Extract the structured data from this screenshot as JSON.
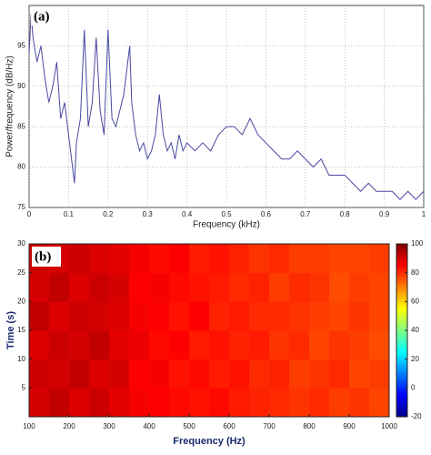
{
  "chart_data": [
    {
      "type": "line",
      "label": "(a)",
      "ylabel": "Power/frequency (dB/Hz)",
      "xlabel": "Frequency (kHz)",
      "x": [
        0,
        0.005,
        0.01,
        0.02,
        0.03,
        0.04,
        0.05,
        0.06,
        0.07,
        0.08,
        0.09,
        0.1,
        0.11,
        0.115,
        0.12,
        0.13,
        0.14,
        0.15,
        0.16,
        0.17,
        0.18,
        0.19,
        0.2,
        0.21,
        0.22,
        0.23,
        0.24,
        0.25,
        0.255,
        0.26,
        0.27,
        0.28,
        0.29,
        0.3,
        0.31,
        0.32,
        0.33,
        0.34,
        0.35,
        0.36,
        0.37,
        0.38,
        0.39,
        0.4,
        0.42,
        0.44,
        0.46,
        0.48,
        0.5,
        0.52,
        0.54,
        0.56,
        0.58,
        0.6,
        0.62,
        0.64,
        0.66,
        0.68,
        0.7,
        0.72,
        0.74,
        0.76,
        0.78,
        0.8,
        0.82,
        0.84,
        0.86,
        0.88,
        0.9,
        0.92,
        0.94,
        0.96,
        0.98,
        1
      ],
      "series": [
        {
          "color": "#4848a0",
          "values": [
            94,
            99,
            96,
            93,
            95,
            91,
            88,
            90,
            93,
            86,
            88,
            84,
            80,
            78,
            83,
            86,
            97,
            85,
            88,
            96,
            87,
            84,
            97,
            86,
            85,
            87,
            89,
            93,
            95,
            88,
            84,
            82,
            83,
            81,
            82,
            84,
            89,
            84,
            82,
            83,
            81,
            84,
            82,
            83,
            82,
            83,
            82,
            84,
            85,
            85,
            84,
            86,
            84,
            83,
            82,
            81,
            81,
            82,
            81,
            80,
            81,
            79,
            79,
            79,
            78,
            77,
            78,
            77,
            77,
            77,
            76,
            77,
            76,
            77
          ]
        }
      ],
      "xlim": [
        0,
        1
      ],
      "ylim": [
        75,
        100
      ],
      "xticks": [
        0,
        0.1,
        0.2,
        0.3,
        0.4,
        0.5,
        0.6,
        0.7,
        0.8,
        0.9,
        1
      ],
      "yticks": [
        75,
        80,
        85,
        90,
        95
      ],
      "grid": true
    },
    {
      "type": "heatmap",
      "label": "(b)",
      "ylabel": "Time (s)",
      "xlabel": "Frequency (Hz)",
      "x": [
        125,
        175,
        225,
        275,
        325,
        375,
        425,
        475,
        525,
        575,
        625,
        675,
        725,
        775,
        825,
        875,
        925,
        975
      ],
      "y": [
        2.5,
        7.5,
        12.5,
        17.5,
        22.5,
        27.5
      ],
      "values": [
        [
          90,
          92,
          89,
          91,
          88,
          86,
          85,
          84,
          83,
          84,
          82,
          81,
          80,
          79,
          80,
          78,
          79,
          77
        ],
        [
          91,
          90,
          92,
          89,
          90,
          85,
          86,
          83,
          84,
          82,
          83,
          80,
          81,
          78,
          79,
          80,
          77,
          78
        ],
        [
          89,
          91,
          90,
          92,
          88,
          87,
          84,
          85,
          82,
          83,
          81,
          82,
          79,
          80,
          77,
          79,
          78,
          76
        ],
        [
          92,
          89,
          91,
          90,
          89,
          86,
          85,
          83,
          85,
          81,
          82,
          80,
          80,
          79,
          78,
          77,
          79,
          77
        ],
        [
          90,
          92,
          89,
          91,
          90,
          85,
          86,
          84,
          83,
          82,
          80,
          81,
          78,
          80,
          79,
          76,
          78,
          77
        ],
        [
          91,
          90,
          91,
          89,
          88,
          86,
          84,
          85,
          82,
          83,
          81,
          79,
          80,
          78,
          78,
          77,
          77,
          78
        ]
      ],
      "xlim": [
        100,
        1000
      ],
      "ylim": [
        0,
        30
      ],
      "xticks": [
        100,
        200,
        300,
        400,
        500,
        600,
        700,
        800,
        900,
        1000
      ],
      "yticks": [
        5,
        10,
        15,
        20,
        25,
        30
      ],
      "clim": [
        -20,
        100
      ],
      "cticks": [
        -20,
        0,
        20,
        40,
        60,
        80,
        100
      ]
    }
  ]
}
